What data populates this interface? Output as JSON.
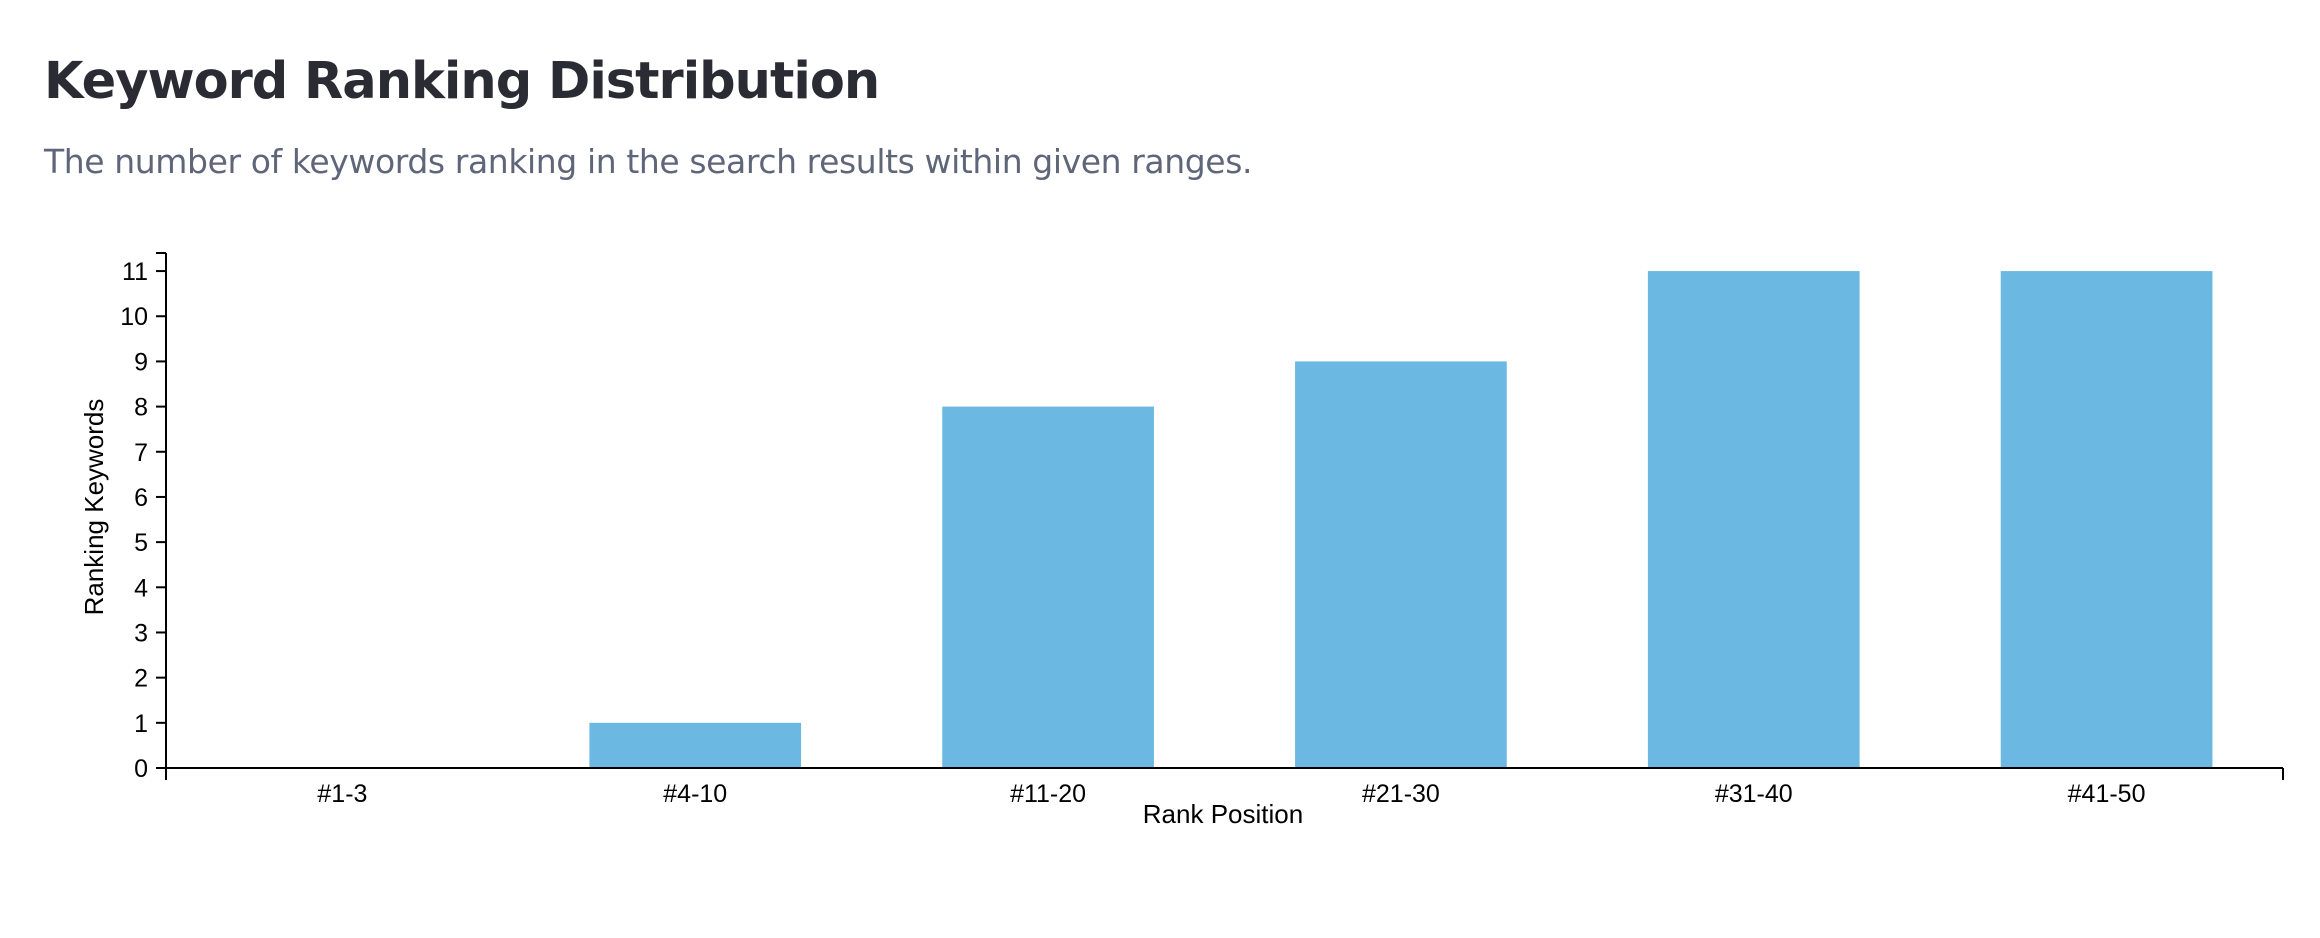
{
  "header": {
    "title": "Keyword Ranking Distribution",
    "subtitle": "The number of keywords ranking in the search results within given ranges."
  },
  "colors": {
    "bar": "#6bb9e3",
    "title": "#2a2b33",
    "subtitle": "#5f6679",
    "axis": "#000000"
  },
  "chart_data": {
    "type": "bar",
    "title": "",
    "xlabel": "Rank Position",
    "ylabel": "Ranking Keywords",
    "categories": [
      "#1-3",
      "#4-10",
      "#11-20",
      "#21-30",
      "#31-40",
      "#41-50"
    ],
    "values": [
      0,
      1,
      8,
      9,
      11,
      11
    ],
    "yticks": [
      0,
      1,
      2,
      3,
      4,
      5,
      6,
      7,
      8,
      9,
      10,
      11
    ],
    "ylim": [
      0,
      11.4
    ],
    "grid": false,
    "legend": "none"
  }
}
